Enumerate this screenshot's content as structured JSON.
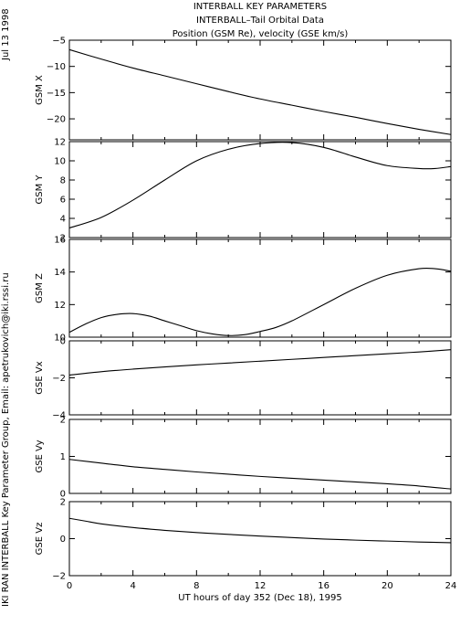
{
  "figure": {
    "title_lines": [
      "INTERBALL KEY PARAMETERS",
      "INTERBALL–Tail Orbital Data",
      "Position (GSM Re), velocity (GSE km/s)"
    ],
    "date_label": "Jul 13 1998",
    "credit": "IKI RAN INTERBALL Key Parameter Group, Email: apetrukovich@iki.rssi.ru"
  },
  "chart_data": [
    {
      "type": "line",
      "ylabel": "GSM X",
      "ylim": [
        -24,
        -5
      ],
      "yticks": [
        -20,
        -15,
        -10,
        -5
      ],
      "xlim": [
        0,
        24
      ],
      "x": [
        0,
        2,
        4,
        6,
        8,
        10,
        12,
        14,
        16,
        18,
        20,
        22,
        24
      ],
      "values": [
        -6.8,
        -8.6,
        -10.3,
        -11.8,
        -13.3,
        -14.8,
        -16.2,
        -17.4,
        -18.6,
        -19.7,
        -20.9,
        -22.0,
        -23.0
      ]
    },
    {
      "type": "line",
      "ylabel": "GSM Y",
      "ylim": [
        2,
        12
      ],
      "yticks": [
        2,
        4,
        6,
        8,
        10,
        12
      ],
      "xlim": [
        0,
        24
      ],
      "x": [
        0,
        2,
        4,
        6,
        8,
        10,
        12,
        14,
        16,
        18,
        20,
        22,
        23,
        24
      ],
      "values": [
        3.0,
        4.1,
        5.9,
        8.0,
        10.0,
        11.2,
        11.8,
        11.9,
        11.4,
        10.4,
        9.5,
        9.2,
        9.2,
        9.4
      ]
    },
    {
      "type": "line",
      "ylabel": "GSM Z",
      "ylim": [
        10,
        16
      ],
      "yticks": [
        10,
        12,
        14,
        16
      ],
      "xlim": [
        0,
        24
      ],
      "x": [
        0,
        1,
        2,
        3,
        4,
        5,
        6,
        7,
        8,
        9,
        10,
        11,
        12,
        13,
        14,
        16,
        18,
        20,
        22,
        23,
        24
      ],
      "values": [
        10.3,
        10.8,
        11.2,
        11.4,
        11.45,
        11.3,
        11.0,
        10.7,
        10.4,
        10.2,
        10.1,
        10.15,
        10.35,
        10.6,
        11.0,
        12.0,
        13.0,
        13.8,
        14.2,
        14.2,
        14.05
      ]
    },
    {
      "type": "line",
      "ylabel": "GSE Vx",
      "ylim": [
        -4,
        0
      ],
      "yticks": [
        -4,
        -2,
        0
      ],
      "xlim": [
        0,
        24
      ],
      "x": [
        0,
        2,
        4,
        6,
        8,
        10,
        12,
        14,
        16,
        18,
        20,
        22,
        24
      ],
      "values": [
        -1.85,
        -1.67,
        -1.53,
        -1.41,
        -1.3,
        -1.2,
        -1.1,
        -1.0,
        -0.9,
        -0.8,
        -0.7,
        -0.6,
        -0.48
      ]
    },
    {
      "type": "line",
      "ylabel": "GSE Vy",
      "ylim": [
        0,
        2
      ],
      "yticks": [
        0,
        1,
        2
      ],
      "xlim": [
        0,
        24
      ],
      "x": [
        0,
        2,
        4,
        6,
        8,
        10,
        12,
        14,
        16,
        18,
        20,
        22,
        24
      ],
      "values": [
        0.92,
        0.82,
        0.72,
        0.65,
        0.58,
        0.52,
        0.46,
        0.41,
        0.36,
        0.31,
        0.26,
        0.2,
        0.12
      ]
    },
    {
      "type": "line",
      "ylabel": "GSE Vz",
      "ylim": [
        -2,
        2
      ],
      "yticks": [
        -2,
        0,
        2
      ],
      "xlim": [
        0,
        24
      ],
      "x": [
        0,
        1,
        2,
        4,
        6,
        8,
        10,
        12,
        14,
        16,
        18,
        20,
        22,
        24
      ],
      "values": [
        1.1,
        0.95,
        0.8,
        0.6,
        0.45,
        0.33,
        0.23,
        0.14,
        0.06,
        -0.02,
        -0.08,
        -0.13,
        -0.18,
        -0.22
      ],
      "xlabel": "UT hours of day 352 (Dec 18), 1995",
      "xticks": [
        0,
        4,
        8,
        12,
        16,
        20,
        24
      ]
    }
  ]
}
